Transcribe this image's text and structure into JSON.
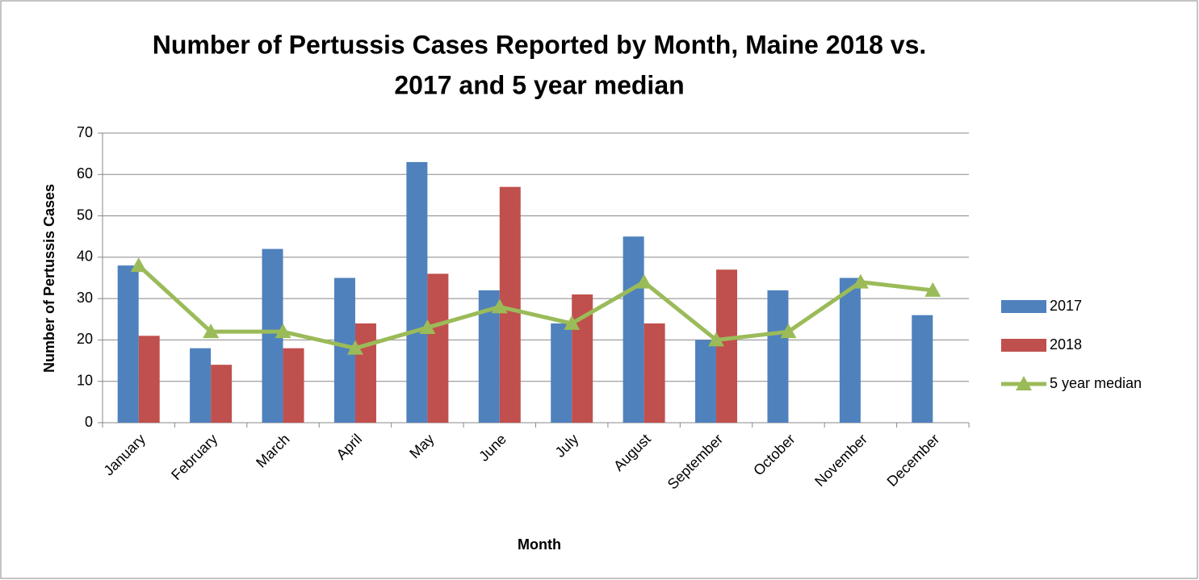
{
  "chart_data": {
    "type": "bar",
    "title": [
      "Number of Pertussis Cases Reported by Month, Maine 2018 vs.",
      "2017 and 5 year median"
    ],
    "x_label": "Month",
    "y_label": "Number of Pertussis Cases",
    "categories": [
      "January",
      "February",
      "March",
      "April",
      "May",
      "June",
      "July",
      "August",
      "September",
      "October",
      "November",
      "December"
    ],
    "series": [
      {
        "name": "2017",
        "color": "#4f81bd",
        "values": [
          38,
          18,
          42,
          35,
          63,
          32,
          24,
          45,
          20,
          32,
          35,
          26
        ]
      },
      {
        "name": "2018",
        "color": "#c0504d",
        "values": [
          21,
          14,
          18,
          24,
          36,
          57,
          31,
          24,
          37,
          null,
          null,
          null
        ]
      },
      {
        "name": "5 year median",
        "color": "#9bbb59",
        "type": "line",
        "marker": "triangle",
        "values": [
          38,
          22,
          22,
          18,
          23,
          28,
          24,
          34,
          20,
          22,
          34,
          32
        ]
      }
    ],
    "ylim": [
      0,
      70
    ],
    "yticks": [
      0,
      10,
      20,
      30,
      40,
      50,
      60,
      70
    ],
    "grid": true,
    "legend": "right"
  }
}
